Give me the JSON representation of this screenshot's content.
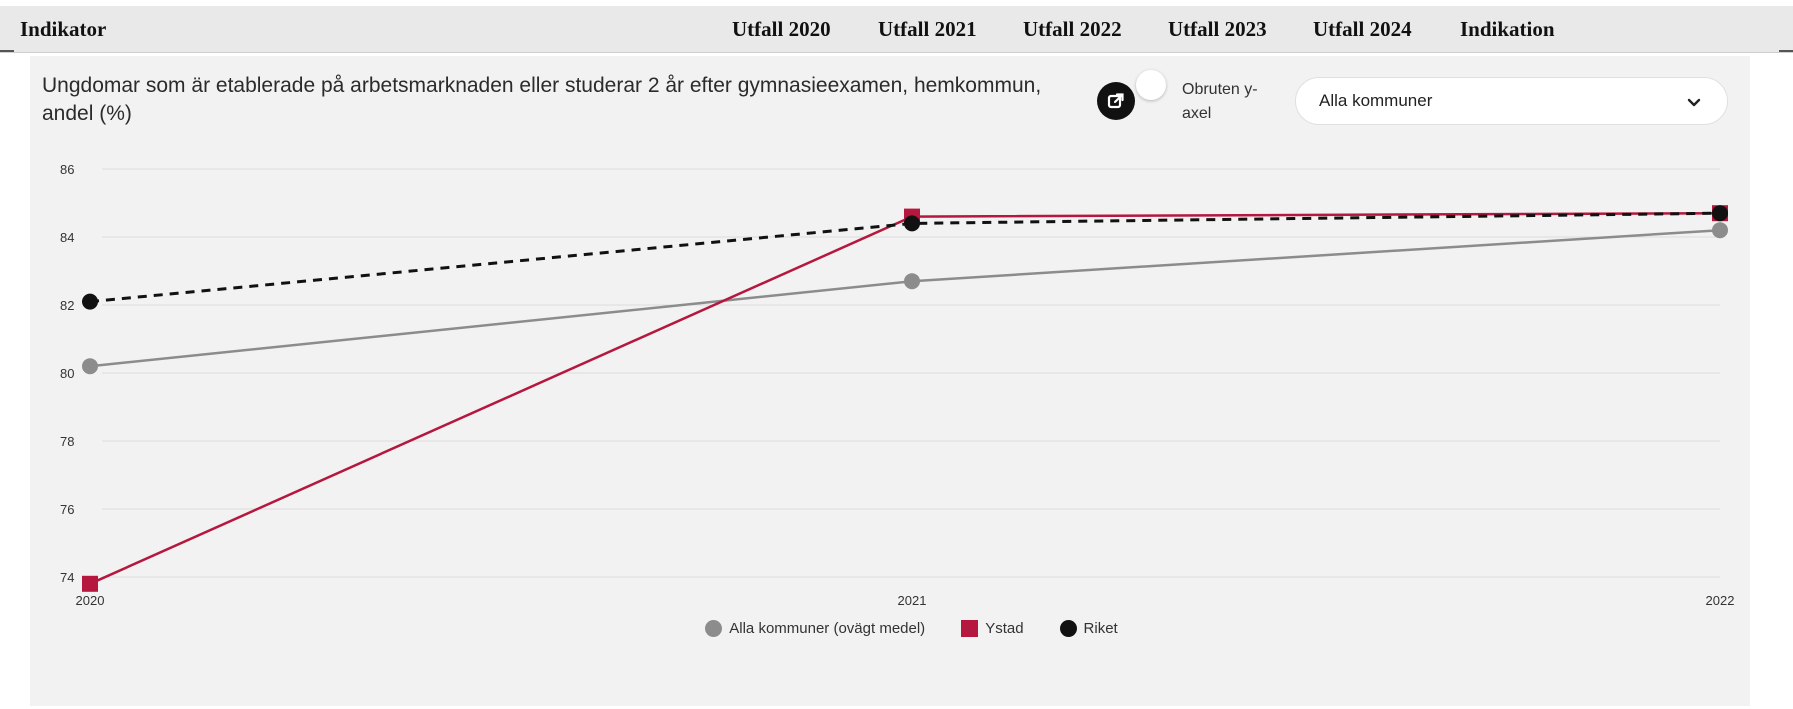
{
  "table_header": {
    "columns": [
      "Indikator",
      "Utfall 2020",
      "Utfall 2021",
      "Utfall 2022",
      "Utfall 2023",
      "Utfall 2024",
      "Indikation"
    ]
  },
  "controls": {
    "toggle_label": "Obruten y-axel",
    "select_value": "Alla kommuner",
    "icons": {
      "export": "external-link-icon",
      "dropdown": "chevron-down-icon"
    }
  },
  "chart_data": {
    "type": "line",
    "title": "Ungdomar som är etablerade på arbetsmarknaden eller studerar 2 år efter gymnasieexamen, hemkommun, andel (%)",
    "x": [
      "2020",
      "2021",
      "2022"
    ],
    "y_ticks": [
      74,
      76,
      78,
      80,
      82,
      84,
      86
    ],
    "ylim": [
      72,
      86
    ],
    "grid": true,
    "legend_position": "bottom",
    "series": [
      {
        "name": "Alla kommuner (ovägt medel)",
        "values": [
          80.2,
          82.7,
          84.2
        ],
        "color": "#8c8c8c",
        "marker": "circle",
        "dash": false
      },
      {
        "name": "Ystad",
        "values": [
          73.8,
          84.6,
          84.7
        ],
        "color": "#b5173e",
        "marker": "square",
        "dash": false
      },
      {
        "name": "Riket",
        "values": [
          82.1,
          84.4,
          84.7
        ],
        "color": "#111111",
        "marker": "circle",
        "dash": true
      }
    ]
  }
}
